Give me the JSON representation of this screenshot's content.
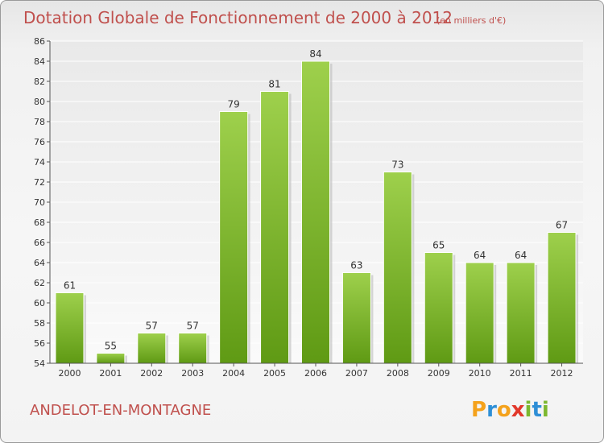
{
  "chart_data": {
    "type": "bar",
    "title": "Dotation Globale de Fonctionnement de 2000 à 2012",
    "subtitle": "(en milliers d'€)",
    "categories": [
      "2000",
      "2001",
      "2002",
      "2003",
      "2004",
      "2005",
      "2006",
      "2007",
      "2008",
      "2009",
      "2010",
      "2011",
      "2012"
    ],
    "values": [
      61,
      55,
      57,
      57,
      79,
      81,
      84,
      63,
      73,
      65,
      64,
      64,
      67
    ],
    "xlabel": "",
    "ylabel": "",
    "ylim": [
      54,
      86
    ],
    "yticks": [
      54,
      56,
      58,
      60,
      62,
      64,
      66,
      68,
      70,
      72,
      74,
      76,
      78,
      80,
      82,
      84,
      86
    ],
    "grid": true,
    "bar_color": "#7cb82f"
  },
  "footer": {
    "commune": "ANDELOT-EN-MONTAGNE",
    "brand": {
      "letters": [
        "P",
        "r",
        "o",
        "x",
        "i",
        "t",
        "i"
      ],
      "colors": [
        "#f4a21c",
        "#2e8fd6",
        "#f4a21c",
        "#e2382b",
        "#7cb82f",
        "#2e8fd6",
        "#7cb82f"
      ]
    }
  }
}
